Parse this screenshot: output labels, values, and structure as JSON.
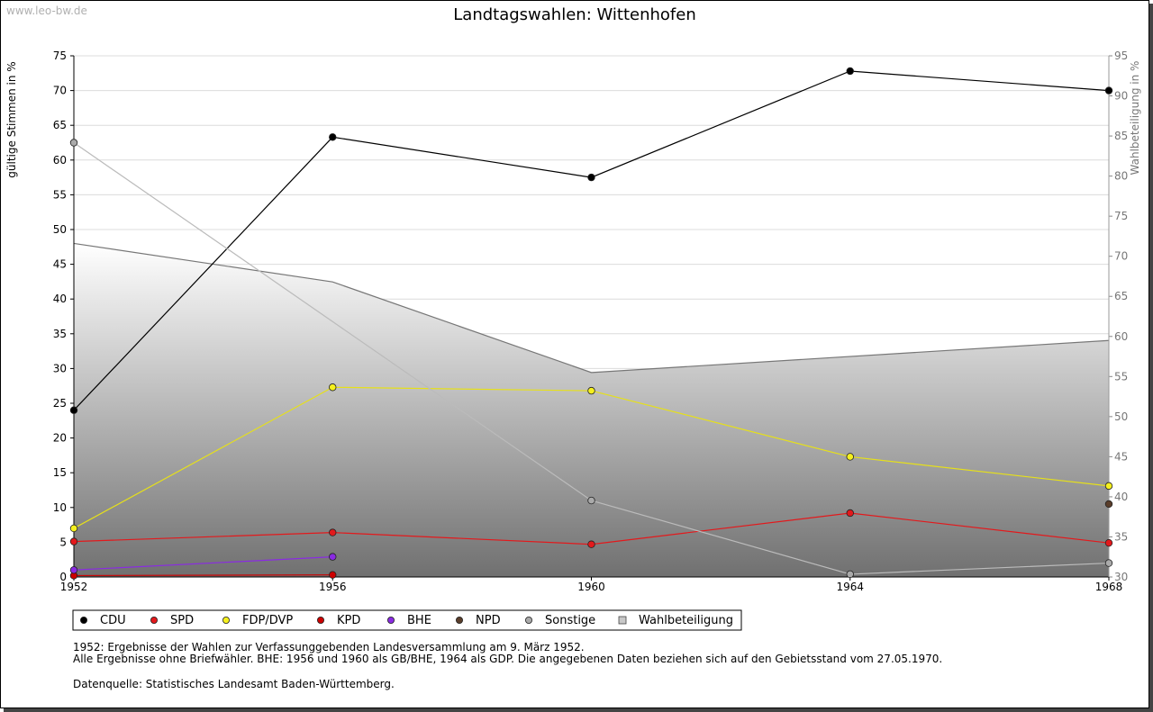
{
  "watermark": "www.leo-bw.de",
  "chart_data": {
    "type": "line",
    "title": "Landtagswahlen: Wittenhofen",
    "ylabel": "gültige Stimmen in %",
    "y2label": "Wahlbeteiligung in %",
    "categories": [
      "1952",
      "1956",
      "1960",
      "1964",
      "1968"
    ],
    "x": [
      1952,
      1956,
      1960,
      1964,
      1968
    ],
    "xlim": [
      1952,
      1968
    ],
    "ylim": [
      0,
      75
    ],
    "y2lim": [
      30,
      95
    ],
    "yticks": [
      0,
      5,
      10,
      15,
      20,
      25,
      30,
      35,
      40,
      45,
      50,
      55,
      60,
      65,
      70,
      75
    ],
    "y2ticks": [
      30,
      35,
      40,
      45,
      50,
      55,
      60,
      65,
      70,
      75,
      80,
      85,
      90,
      95
    ],
    "grid": true,
    "legend_position": "bottom-left",
    "series": [
      {
        "name": "CDU",
        "color": "#000000",
        "values": [
          24.0,
          63.3,
          57.5,
          72.8,
          70.0
        ]
      },
      {
        "name": "SPD",
        "color": "#e3191c",
        "values": [
          5.1,
          6.4,
          4.7,
          9.2,
          4.9
        ]
      },
      {
        "name": "FDP/DVP",
        "color": "#f5f01e",
        "values": [
          7.0,
          27.3,
          26.8,
          17.3,
          13.1
        ]
      },
      {
        "name": "KPD",
        "color": "#cc0000",
        "values": [
          0.2,
          0.3,
          null,
          null,
          null
        ]
      },
      {
        "name": "BHE",
        "color": "#8a2be2",
        "values": [
          1.0,
          2.9,
          null,
          null,
          null
        ]
      },
      {
        "name": "NPD",
        "color": "#5a3e2b",
        "values": [
          null,
          null,
          null,
          null,
          10.5
        ]
      },
      {
        "name": "Sonstige",
        "color": "#aaaaaa",
        "values": [
          62.5,
          null,
          11.0,
          0.4,
          2.0
        ]
      }
    ],
    "turnout": {
      "name": "Wahlbeteiligung",
      "axis": "right",
      "values": [
        71.6,
        66.8,
        55.5,
        null,
        59.5
      ]
    }
  },
  "notes": {
    "line1": "1952: Ergebnisse der Wahlen zur Verfassunggebenden Landesversammlung am 9. März 1952.",
    "line2": "Alle Ergebnisse ohne Briefwähler. BHE: 1956 und 1960 als GB/BHE, 1964 als GDP. Die angegebenen Daten beziehen sich auf den Gebietsstand vom 27.05.1970.",
    "source": "Datenquelle: Statistisches Landesamt Baden-Württemberg."
  }
}
